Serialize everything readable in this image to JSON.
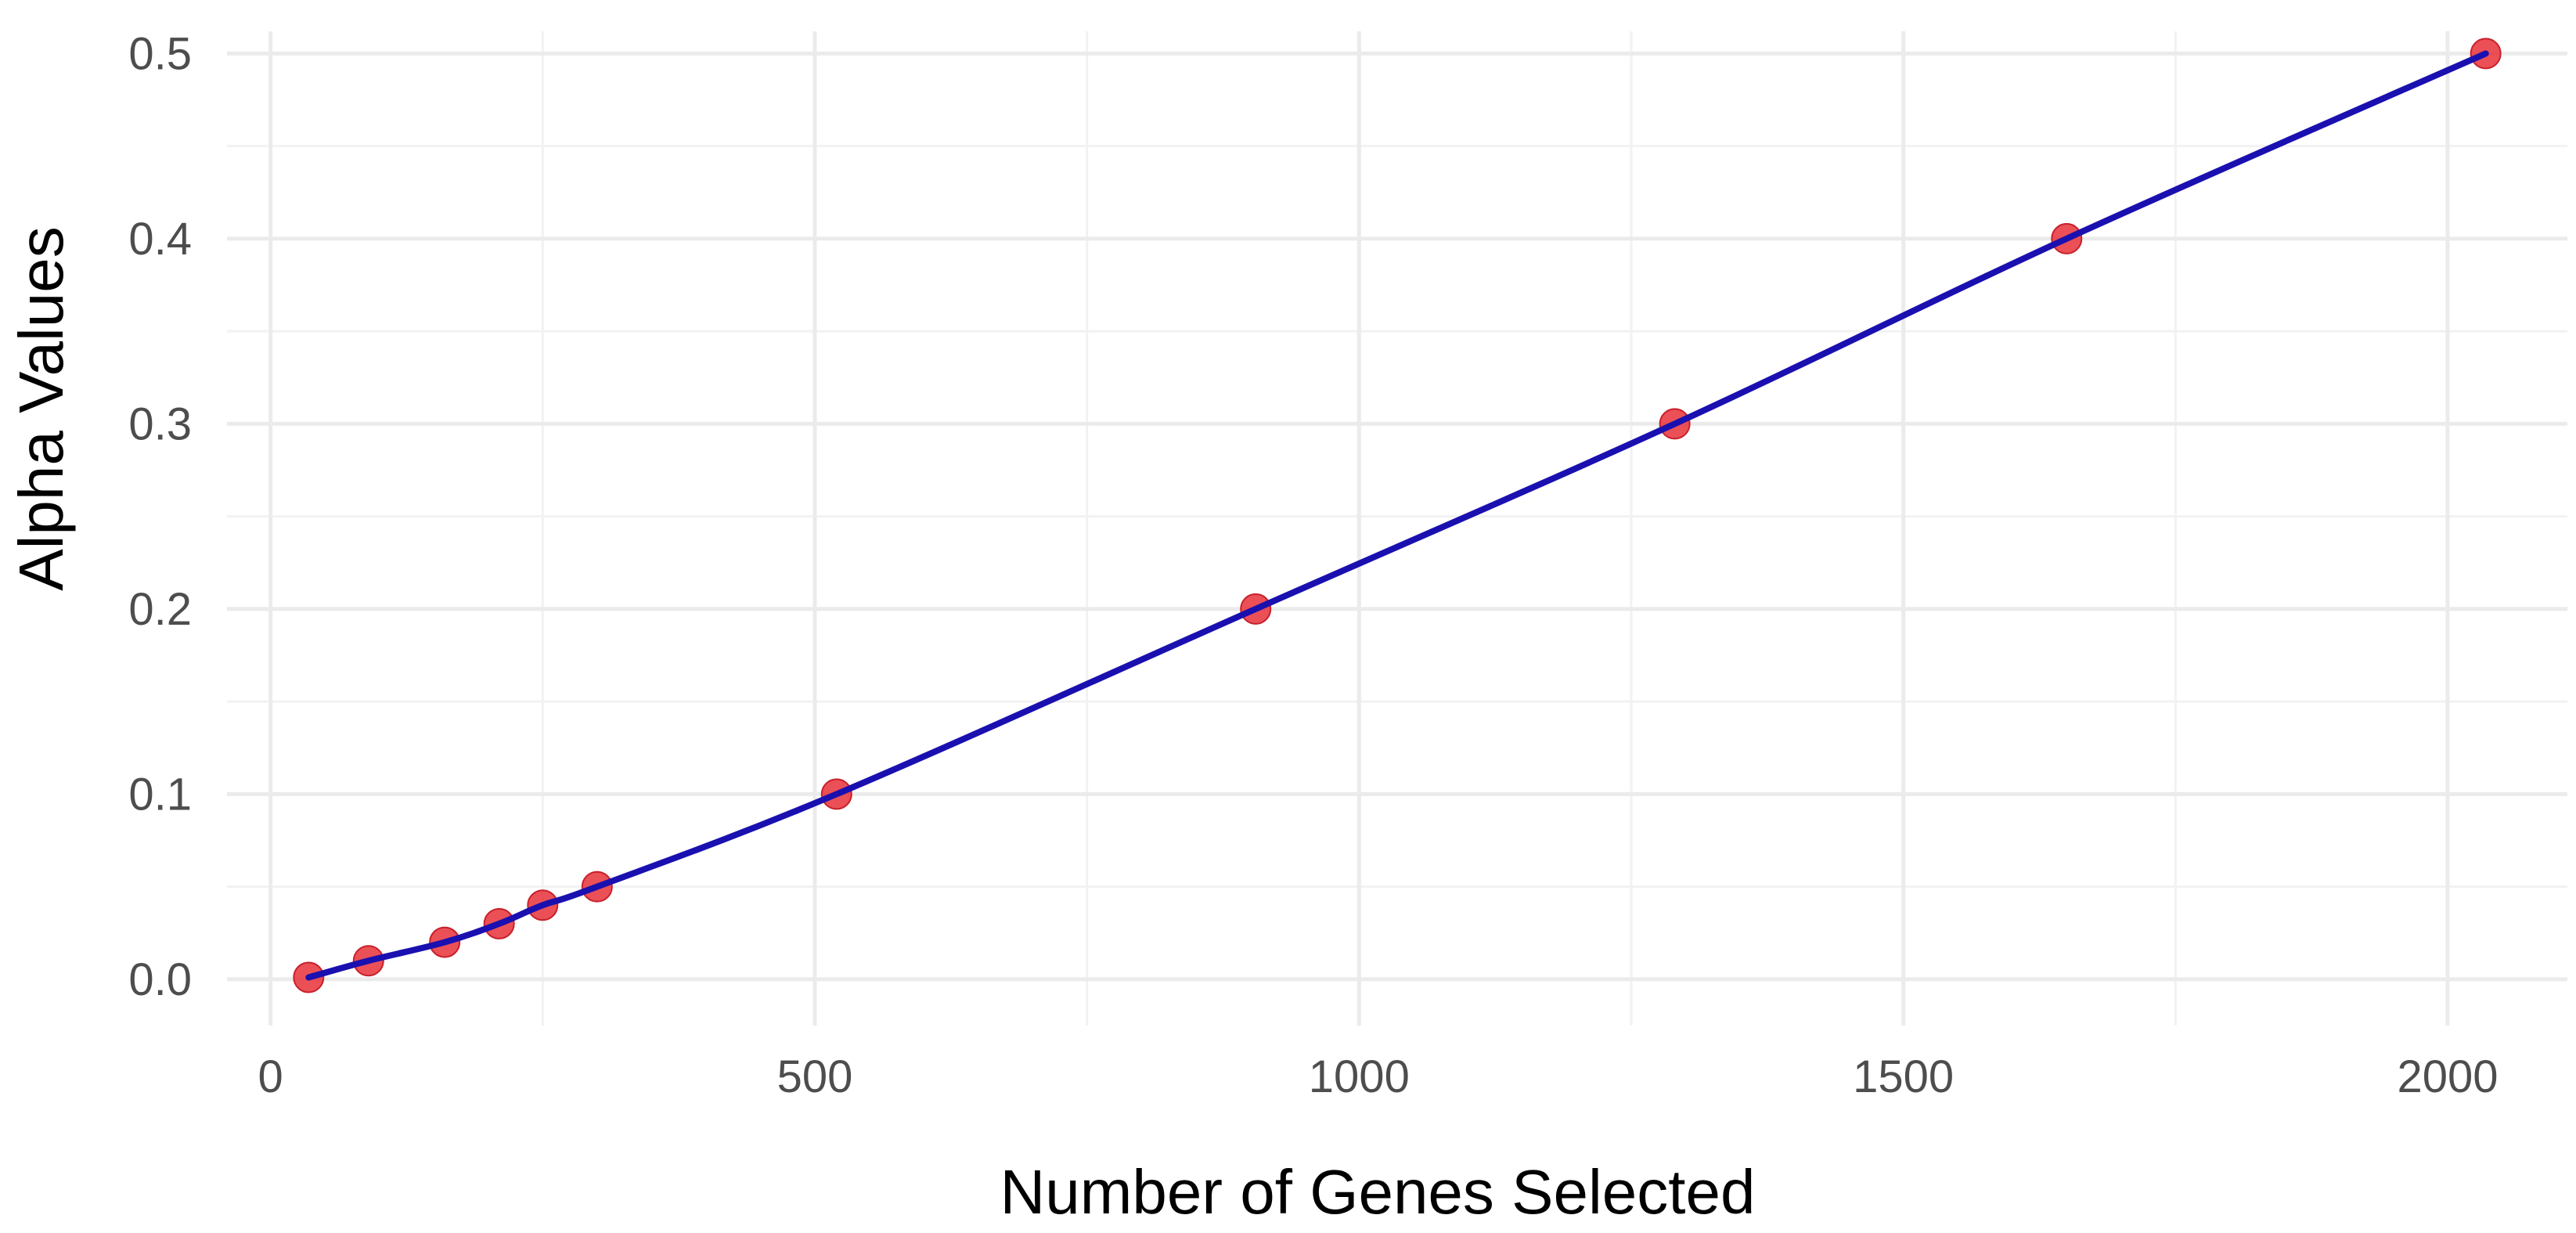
{
  "chart_data": {
    "type": "line",
    "xlabel": "Number of Genes Selected",
    "ylabel": "Alpha Values",
    "xlim": [
      -40,
      2110
    ],
    "ylim": [
      -0.025,
      0.512
    ],
    "x_ticks": [
      0,
      500,
      1000,
      1500,
      2000
    ],
    "y_ticks": [
      0.0,
      0.1,
      0.2,
      0.3,
      0.4,
      0.5
    ],
    "x_tick_labels": [
      "0",
      "500",
      "1000",
      "1500",
      "2000"
    ],
    "y_tick_labels": [
      "0.0",
      "0.1",
      "0.2",
      "0.3",
      "0.4",
      "0.5"
    ],
    "grid": true,
    "legend": "none",
    "series": [
      {
        "x": [
          35,
          90,
          160,
          210,
          250,
          300,
          520,
          905,
          1290,
          1650,
          2035
        ],
        "y": [
          0.001,
          0.01,
          0.02,
          0.03,
          0.04,
          0.05,
          0.1,
          0.2,
          0.3,
          0.4,
          0.5
        ],
        "line_color": "#1a10b0",
        "point_color": "#e8313a"
      }
    ]
  }
}
